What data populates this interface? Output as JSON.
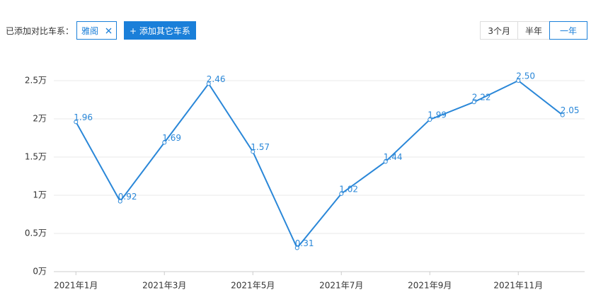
{
  "ui": {
    "compare_label": "已添加对比车系：",
    "tag": "雅阁",
    "add_button": "+ 添加其它车系",
    "ranges": [
      "3个月",
      "半年",
      "一年"
    ],
    "active_range": 2
  },
  "chart_data": {
    "type": "line",
    "categories": [
      "2021年1月",
      null,
      "2021年3月",
      null,
      "2021年5月",
      null,
      "2021年7月",
      null,
      "2021年9月",
      null,
      "2021年11月",
      null
    ],
    "series": [
      {
        "name": "雅阁",
        "color": "#2a87d8",
        "values": [
          1.96,
          0.92,
          1.69,
          2.46,
          1.57,
          0.31,
          1.02,
          1.44,
          1.99,
          2.22,
          2.5,
          2.05
        ],
        "value_labels": [
          "1.96",
          "0.92",
          "1.69",
          "2.46",
          "1.57",
          "0.31",
          "1.02",
          "1.44",
          "1.99",
          "2.22",
          "2.50",
          "2.05"
        ]
      }
    ],
    "ylim": [
      0,
      2.5
    ],
    "yticks": [
      {
        "value": 0,
        "label": "0万"
      },
      {
        "value": 0.5,
        "label": "0.5万"
      },
      {
        "value": 1,
        "label": "1万"
      },
      {
        "value": 1.5,
        "label": "1.5万"
      },
      {
        "value": 2,
        "label": "2万"
      },
      {
        "value": 2.5,
        "label": "2.5万"
      }
    ],
    "grid": true
  }
}
